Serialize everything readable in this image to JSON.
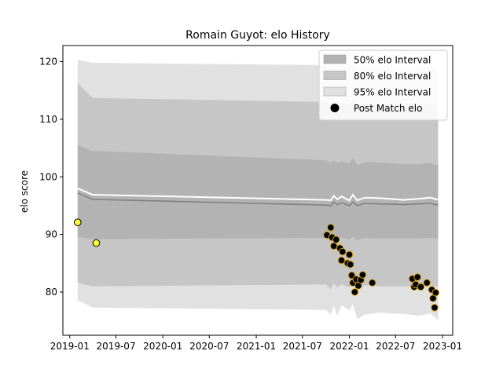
{
  "chart_data": {
    "type": "line",
    "title": "Romain Guyot: elo History",
    "xlabel": "",
    "ylabel": "elo score",
    "x_axis_type": "date",
    "xlim": [
      "2018-12-05",
      "2023-02-10"
    ],
    "ylim": [
      72.5,
      122.8
    ],
    "x_ticks": [
      "2019-01",
      "2019-07",
      "2020-01",
      "2020-07",
      "2021-01",
      "2021-07",
      "2022-01",
      "2022-07",
      "2023-01"
    ],
    "y_ticks": [
      80,
      90,
      100,
      110,
      120
    ],
    "grid": false,
    "legend": {
      "placement": "top-right",
      "entries": [
        {
          "label": "50% elo Interval",
          "color": "#b3b3b3",
          "kind": "band"
        },
        {
          "label": "80% elo Interval",
          "color": "#c6c6c6",
          "kind": "band"
        },
        {
          "label": "95% elo Interval",
          "color": "#e1e1e1",
          "kind": "band"
        },
        {
          "label": "Post Match elo",
          "color": "#000000",
          "kind": "marker"
        }
      ]
    },
    "colors": {
      "band_50": "#b3b3b3",
      "band_80": "#c6c6c6",
      "band_95": "#e1e1e1",
      "mean_line": "#808080",
      "upper_line": "#ffffff",
      "point_fill_dark": "#000000",
      "point_fill_light": "#ffff33",
      "point_edge": "#d4a017"
    },
    "interval_bands": {
      "dates": [
        "2019-02-01",
        "2019-04-01",
        "2021-10-01",
        "2021-10-20",
        "2021-11-01",
        "2021-11-15",
        "2021-12-01",
        "2022-01-01",
        "2022-01-15",
        "2022-02-01",
        "2022-03-01",
        "2022-05-01",
        "2022-08-01",
        "2022-10-01",
        "2022-11-15",
        "2022-12-15"
      ],
      "mean": [
        97.2,
        96.1,
        95.1,
        95.0,
        95.6,
        95.2,
        95.5,
        95.0,
        95.6,
        95.0,
        95.4,
        95.3,
        95.2,
        95.3,
        95.4,
        95.1
      ],
      "upper_line": [
        98.0,
        96.9,
        96.0,
        95.9,
        96.7,
        96.1,
        96.6,
        95.9,
        96.9,
        95.9,
        96.4,
        96.3,
        96.0,
        96.2,
        96.4,
        96.0
      ],
      "band_50": {
        "low": [
          89.6,
          89.2,
          89.4,
          89.0,
          89.6,
          89.1,
          89.5,
          89.1,
          89.6,
          89.0,
          89.4,
          89.3,
          89.3,
          89.3,
          89.4,
          89.2
        ],
        "high": [
          105.5,
          104.5,
          102.9,
          102.5,
          102.8,
          102.4,
          102.8,
          102.3,
          103.4,
          102.0,
          102.6,
          102.5,
          102.2,
          102.2,
          102.4,
          102.0
        ]
      },
      "band_80": {
        "low": [
          81.6,
          81.0,
          81.3,
          80.5,
          81.5,
          80.8,
          81.4,
          80.8,
          81.6,
          80.6,
          81.2,
          81.0,
          81.0,
          81.0,
          81.2,
          80.9
        ],
        "high": [
          116.3,
          113.7,
          113.0,
          112.7,
          113.0,
          112.6,
          112.9,
          112.5,
          113.5,
          112.3,
          112.8,
          112.7,
          112.5,
          112.5,
          112.6,
          112.3
        ]
      },
      "band_95": {
        "low": [
          78.6,
          77.3,
          76.9,
          76.1,
          77.6,
          75.9,
          77.7,
          76.8,
          77.9,
          75.3,
          76.1,
          76.4,
          76.2,
          75.9,
          76.3,
          75.1
        ],
        "high": [
          120.3,
          119.8,
          119.4,
          119.1,
          119.5,
          119.0,
          119.4,
          119.1,
          119.8,
          118.8,
          119.3,
          119.2,
          118.9,
          119.1,
          119.2,
          118.8
        ]
      }
    },
    "series": [
      {
        "name": "Post Match elo",
        "points": [
          {
            "date": "2019-02-01",
            "elo": 92.1,
            "highlight": true
          },
          {
            "date": "2019-04-15",
            "elo": 88.5,
            "highlight": true
          },
          {
            "date": "2021-10-05",
            "elo": 89.9,
            "highlight": false
          },
          {
            "date": "2021-10-20",
            "elo": 91.2,
            "highlight": false
          },
          {
            "date": "2021-10-25",
            "elo": 89.5,
            "highlight": false
          },
          {
            "date": "2021-11-01",
            "elo": 88.0,
            "highlight": false
          },
          {
            "date": "2021-11-10",
            "elo": 89.1,
            "highlight": false
          },
          {
            "date": "2021-11-25",
            "elo": 87.6,
            "highlight": false
          },
          {
            "date": "2021-12-01",
            "elo": 85.5,
            "highlight": false
          },
          {
            "date": "2021-12-05",
            "elo": 87.0,
            "highlight": false
          },
          {
            "date": "2021-12-25",
            "elo": 85.0,
            "highlight": false
          },
          {
            "date": "2022-01-01",
            "elo": 86.5,
            "highlight": false
          },
          {
            "date": "2022-01-05",
            "elo": 84.8,
            "highlight": false
          },
          {
            "date": "2022-01-10",
            "elo": 82.9,
            "highlight": false
          },
          {
            "date": "2022-01-15",
            "elo": 81.6,
            "highlight": false
          },
          {
            "date": "2022-01-22",
            "elo": 80.0,
            "highlight": false
          },
          {
            "date": "2022-01-28",
            "elo": 82.2,
            "highlight": false
          },
          {
            "date": "2022-02-05",
            "elo": 81.1,
            "highlight": false
          },
          {
            "date": "2022-02-15",
            "elo": 82.1,
            "highlight": false
          },
          {
            "date": "2022-02-22",
            "elo": 83.0,
            "highlight": false
          },
          {
            "date": "2022-04-01",
            "elo": 81.6,
            "highlight": false
          },
          {
            "date": "2022-09-05",
            "elo": 82.3,
            "highlight": false
          },
          {
            "date": "2022-09-12",
            "elo": 80.9,
            "highlight": false
          },
          {
            "date": "2022-09-18",
            "elo": 81.3,
            "highlight": false
          },
          {
            "date": "2022-09-25",
            "elo": 82.6,
            "highlight": false
          },
          {
            "date": "2022-10-08",
            "elo": 80.9,
            "highlight": false
          },
          {
            "date": "2022-11-01",
            "elo": 81.6,
            "highlight": false
          },
          {
            "date": "2022-11-20",
            "elo": 80.4,
            "highlight": false
          },
          {
            "date": "2022-11-25",
            "elo": 78.9,
            "highlight": false
          },
          {
            "date": "2022-12-05",
            "elo": 79.9,
            "highlight": false
          },
          {
            "date": "2022-12-01",
            "elo": 77.3,
            "highlight": false
          }
        ]
      }
    ]
  }
}
